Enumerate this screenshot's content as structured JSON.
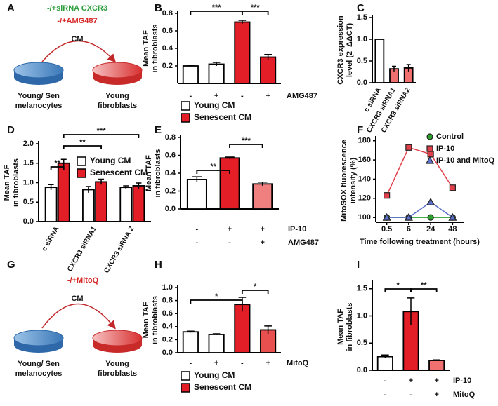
{
  "panel_labels": [
    "A",
    "B",
    "C",
    "D",
    "E",
    "F",
    "G",
    "H",
    "I"
  ],
  "diagrams": [
    {
      "treatments": [
        "-/+siRNA CXCR3",
        "-/+AMG487"
      ],
      "colors": [
        "#2e9e3e",
        "#d62728"
      ],
      "medium": "CM",
      "source": [
        "Young/ Sen",
        "melanocytes"
      ],
      "target": [
        "Young",
        "fibroblasts"
      ]
    },
    {
      "treatments": [
        "-/+MitoQ"
      ],
      "colors": [
        "#d62728"
      ],
      "medium": "CM",
      "source": [
        "Young/ Sen",
        "melanocytes"
      ],
      "target": [
        "Young",
        "fibroblasts"
      ]
    }
  ],
  "chart_data": [
    {
      "type": "bar",
      "ylabel": [
        "Mean TAF",
        "in fibroblasts"
      ],
      "categories": [
        null,
        null,
        null,
        null
      ],
      "values": [
        0.2,
        0.22,
        0.7,
        0.3
      ],
      "errors": [
        0.005,
        0.02,
        0.02,
        0.03
      ],
      "colors": [
        "#ffffff",
        "#ffffff",
        "#e41e26",
        "#e41e26"
      ],
      "ylim": [
        0,
        0.8
      ],
      "yticks": [
        0.2,
        0.4,
        0.6,
        0.8
      ],
      "annotations": [
        "***",
        "***"
      ],
      "treatments": [
        {
          "name": "AMG487",
          "signs": [
            "-",
            "+",
            "-",
            "+"
          ]
        }
      ],
      "legend": [
        {
          "name": "Young CM",
          "color": "#ffffff"
        },
        {
          "name": "Senescent CM",
          "color": "#e41e26"
        }
      ]
    },
    {
      "type": "bar",
      "ylabel": [
        "CXCR3 expression",
        "level (2⁻ΔΔCT)"
      ],
      "categories": [
        "c siRNA",
        "CXCR3 siRNA1",
        "CXCR3 siRNA2"
      ],
      "values": [
        1,
        0.32,
        0.34
      ],
      "errors": [
        null,
        0.06,
        0.08
      ],
      "colors": [
        "#ffffff",
        "#f07070",
        "#f07070"
      ],
      "ylim": [
        0,
        1.5
      ],
      "yticks": [
        {
          "value": 0,
          "label": "0.0"
        },
        0.5,
        {
          "value": 1,
          "label": "1.0"
        },
        1.5
      ]
    },
    {
      "type": "grouped_bar",
      "ylabel": [
        "Mean TAF",
        "in fibroblasts"
      ],
      "categories": [
        "c siRNA",
        "CXCR3 siRNA1",
        "CXCR3 siRNA 2"
      ],
      "series": [
        {
          "name": "Young CM",
          "color": "#ffffff",
          "values": [
            0.88,
            0.82,
            0.88
          ],
          "errors": [
            0.07,
            0.08,
            0.04
          ]
        },
        {
          "name": "Senescent CM",
          "color": "#e41e26",
          "values": [
            1.5,
            1.02,
            0.92
          ],
          "errors": [
            0.1,
            0.07,
            0.07
          ]
        }
      ],
      "ylim": [
        0,
        2
      ],
      "yticks": [
        {
          "value": 0,
          "label": "0.0"
        },
        0.5,
        {
          "value": 1,
          "label": "1.0"
        },
        1.5,
        {
          "value": 2,
          "label": "2.0"
        }
      ],
      "annotations": [
        "**",
        "**",
        "***"
      ]
    },
    {
      "type": "bar",
      "ylabel": [
        "Mean TAF",
        "in fibroblasts"
      ],
      "categories": [
        null,
        null,
        null
      ],
      "values": [
        0.33,
        0.57,
        0.28
      ],
      "errors": [
        0.03,
        0.01,
        0.02
      ],
      "colors": [
        "#ffffff",
        "#e41e26",
        "#f08080"
      ],
      "ylim": [
        0,
        0.8
      ],
      "yticks": [
        {
          "value": 0,
          "label": "0.0"
        },
        0.2,
        0.4,
        0.6,
        0.8
      ],
      "annotations": [
        "**",
        "***"
      ],
      "treatments": [
        {
          "name": "IP-10",
          "signs": [
            "-",
            "+",
            "+"
          ]
        },
        {
          "name": "AMG487",
          "signs": [
            "-",
            "-",
            "+"
          ]
        }
      ]
    },
    {
      "type": "line",
      "ylabel": [
        "MitoSOX fluorescence",
        "intensity (%)"
      ],
      "xlabel": "Time following treatment (hours)",
      "categories": [
        "0.5",
        "6",
        "24",
        "48"
      ],
      "series": [
        {
          "name": "Control",
          "color": "#2ca02c",
          "marker": "circle",
          "values": [
            100,
            100,
            100,
            100
          ]
        },
        {
          "name": "IP-10",
          "color": "#e0404a",
          "marker": "square",
          "values": [
            123,
            173,
            166,
            131
          ]
        },
        {
          "name": "IP-10 and MitoQ",
          "color": "#5b6fc8",
          "marker": "triangle",
          "values": [
            100,
            100,
            116,
            100
          ]
        }
      ],
      "ylim": [
        95,
        182
      ],
      "yticks": [
        100,
        120,
        140,
        160,
        180
      ]
    },
    {
      "type": "bar",
      "ylabel": [
        "Mean TAF",
        "in fibroblasts"
      ],
      "categories": [
        null,
        null,
        null,
        null
      ],
      "values": [
        0.32,
        0.28,
        0.74,
        0.35
      ],
      "errors": [
        0.01,
        0.01,
        0.11,
        0.06
      ],
      "colors": [
        "#ffffff",
        "#ffffff",
        "#e41e26",
        "#e85050"
      ],
      "ylim": [
        0,
        1
      ],
      "yticks": [
        {
          "value": 0,
          "label": "0.0"
        },
        0.2,
        0.4,
        0.6,
        0.8,
        {
          "value": 1,
          "label": "1.0"
        }
      ],
      "annotations": [
        "*",
        "*"
      ],
      "treatments": [
        {
          "name": "MitoQ",
          "signs": [
            "-",
            "+",
            "-",
            "+"
          ]
        }
      ],
      "legend": [
        {
          "name": "Young CM",
          "color": "#ffffff"
        },
        {
          "name": "Senescent CM",
          "color": "#e41e26"
        }
      ]
    },
    {
      "type": "bar",
      "ylabel": [
        "Mean TAF",
        "in fibroblasts"
      ],
      "categories": [
        null,
        null,
        null
      ],
      "values": [
        0.25,
        1.08,
        0.18
      ],
      "errors": [
        0.03,
        0.25,
        0.01
      ],
      "colors": [
        "#ffffff",
        "#e41e26",
        "#f07070"
      ],
      "ylim": [
        0,
        1.6
      ],
      "yticks": [
        {
          "value": 0,
          "label": "0.0"
        },
        0.5,
        {
          "value": 1,
          "label": "1.0"
        },
        1.5
      ],
      "annotations": [
        "*",
        "**"
      ],
      "treatments": [
        {
          "name": "IP-10",
          "signs": [
            "-",
            "+",
            "+"
          ]
        },
        {
          "name": "MitoQ",
          "signs": [
            "-",
            "-",
            "+"
          ]
        }
      ]
    }
  ]
}
